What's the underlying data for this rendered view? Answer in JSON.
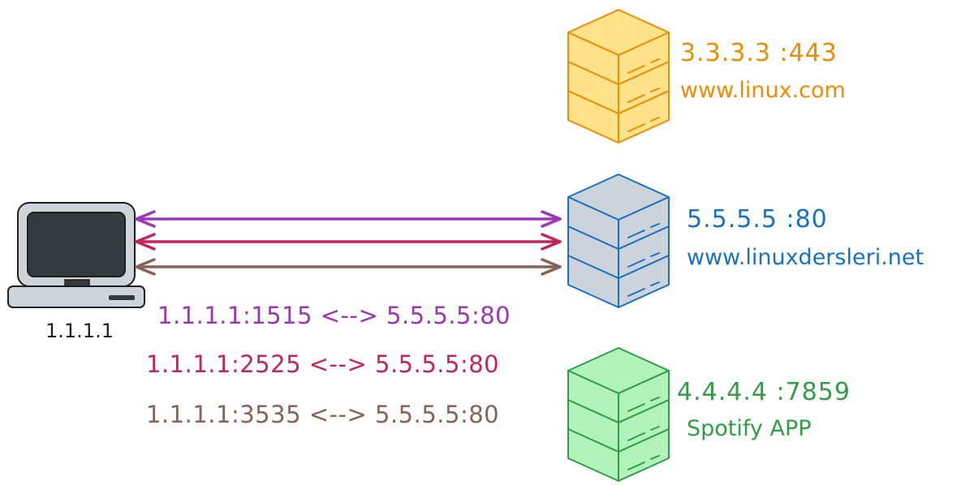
{
  "client": {
    "ip": "1.1.1.1"
  },
  "servers": [
    {
      "id": "linux",
      "ip": "3.3.3.3 :443",
      "name": "www.linux.com",
      "color": "#f08c00",
      "fill": "#ffe28a",
      "stroke": "#f08c00"
    },
    {
      "id": "linuxdersleri",
      "ip": "5.5.5.5 :80",
      "name": "www.linuxdersleri.net",
      "color": "#1971c2",
      "fill": "#cdd3db",
      "stroke": "#1971c2"
    },
    {
      "id": "spotify",
      "ip": "4.4.4.4 :7859",
      "name": "Spotify APP",
      "color": "#2f9e44",
      "fill": "#b2f2bb",
      "stroke": "#2f9e44"
    }
  ],
  "connections": [
    {
      "label": "1.1.1.1:1515 <--> 5.5.5.5:80",
      "color": "#9c36b5"
    },
    {
      "label": "1.1.1.1:2525 <--> 5.5.5.5:80",
      "color": "#c2255c"
    },
    {
      "label": "1.1.1.1:3535 <--> 5.5.5.5:80",
      "color": "#846358"
    }
  ]
}
